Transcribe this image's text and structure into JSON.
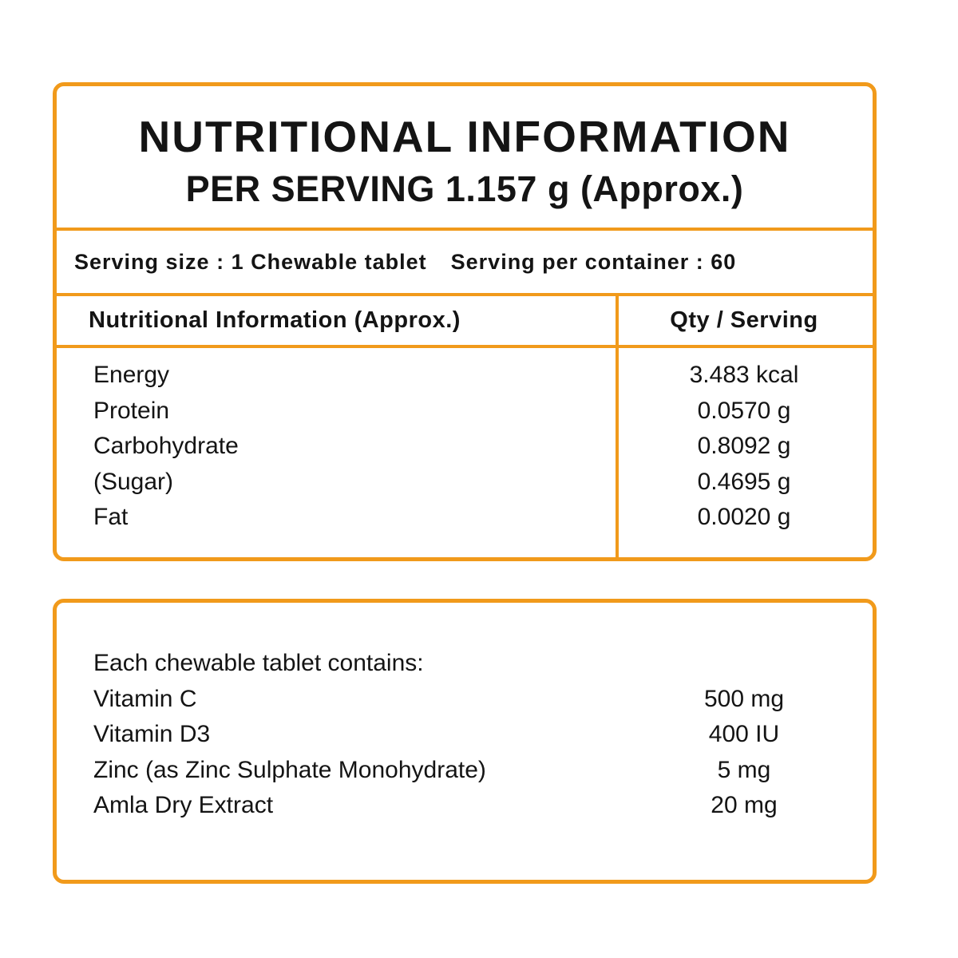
{
  "colors": {
    "accent": "#F19A1B",
    "text": "#141414",
    "background": "#FFFFFF"
  },
  "panel1": {
    "title": "NUTRITIONAL INFORMATION",
    "subtitle": "PER SERVING 1.157 g (Approx.)",
    "serving_size": "Serving size : 1 Chewable tablet",
    "serving_per_container": "Serving per container : 60",
    "table": {
      "col1_header": "Nutritional Information (Approx.)",
      "col2_header": "Qty / Serving",
      "rows": [
        {
          "name": "Energy",
          "qty": "3.483 kcal"
        },
        {
          "name": "Protein",
          "qty": "0.0570 g"
        },
        {
          "name": "Carbohydrate",
          "qty": "0.8092 g"
        },
        {
          "name": "(Sugar)",
          "qty": "0.4695 g"
        },
        {
          "name": "Fat",
          "qty": "0.0020 g"
        }
      ]
    }
  },
  "panel2": {
    "heading": "Each chewable tablet contains:",
    "rows": [
      {
        "name": "Vitamin C",
        "qty": "500 mg"
      },
      {
        "name": "Vitamin D3",
        "qty": "400 IU"
      },
      {
        "name": "Zinc (as Zinc Sulphate Monohydrate)",
        "qty": "5 mg"
      },
      {
        "name": "Amla Dry Extract",
        "qty": "20 mg"
      }
    ]
  }
}
